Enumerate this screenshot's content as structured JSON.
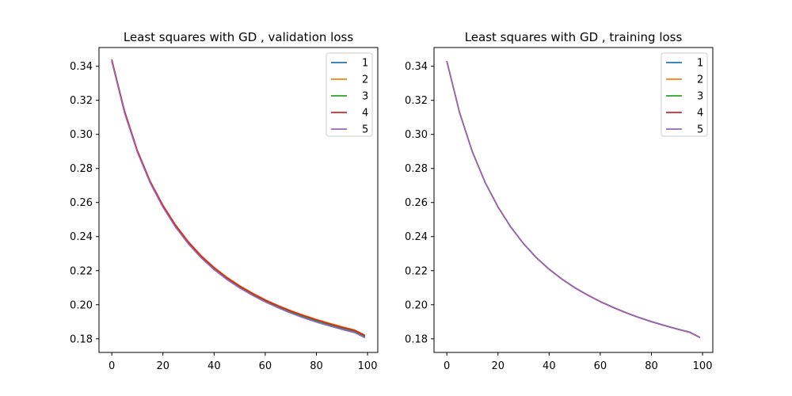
{
  "chart_data": [
    {
      "type": "line",
      "title": "Least squares with GD , validation loss",
      "xlabel": "",
      "ylabel": "",
      "xlim": [
        -5,
        104
      ],
      "ylim": [
        0.172,
        0.351
      ],
      "xticks": [
        0,
        20,
        40,
        60,
        80,
        100
      ],
      "yticks": [
        0.18,
        0.2,
        0.22,
        0.24,
        0.26,
        0.28,
        0.3,
        0.32,
        0.34
      ],
      "x": [
        0,
        5,
        10,
        15,
        20,
        25,
        30,
        35,
        40,
        45,
        50,
        55,
        60,
        65,
        70,
        75,
        80,
        85,
        90,
        95,
        99
      ],
      "legend": "top-right",
      "grid": false,
      "series": [
        {
          "name": "1",
          "color": "#1f77b4",
          "values": [
            0.343,
            0.313,
            0.29,
            0.272,
            0.258,
            0.246,
            0.236,
            0.228,
            0.2215,
            0.2155,
            0.2105,
            0.2062,
            0.2022,
            0.1988,
            0.1957,
            0.1929,
            0.1904,
            0.1882,
            0.1861,
            0.1842,
            0.1811
          ]
        },
        {
          "name": "2",
          "color": "#ff7f0e",
          "values": [
            0.343,
            0.3135,
            0.2905,
            0.2725,
            0.2585,
            0.2468,
            0.237,
            0.2288,
            0.222,
            0.2162,
            0.2112,
            0.2069,
            0.203,
            0.1996,
            0.1966,
            0.1939,
            0.1914,
            0.1892,
            0.1871,
            0.1852,
            0.1822
          ]
        },
        {
          "name": "3",
          "color": "#2ca02c",
          "values": [
            0.343,
            0.313,
            0.29,
            0.272,
            0.258,
            0.2462,
            0.2364,
            0.2282,
            0.2214,
            0.2156,
            0.2106,
            0.2063,
            0.2024,
            0.199,
            0.196,
            0.1932,
            0.1907,
            0.1885,
            0.1864,
            0.1845,
            0.1815
          ]
        },
        {
          "name": "4",
          "color": "#d62728",
          "values": [
            0.344,
            0.3138,
            0.2906,
            0.2725,
            0.2583,
            0.2465,
            0.2367,
            0.2285,
            0.2217,
            0.2159,
            0.2109,
            0.2066,
            0.2027,
            0.1993,
            0.1963,
            0.1936,
            0.1911,
            0.1889,
            0.1868,
            0.1849,
            0.1819
          ]
        },
        {
          "name": "5",
          "color": "#9467bd",
          "values": [
            0.343,
            0.3125,
            0.2895,
            0.2715,
            0.2572,
            0.2454,
            0.2356,
            0.2274,
            0.2206,
            0.2148,
            0.2098,
            0.2055,
            0.2016,
            0.1982,
            0.1951,
            0.1923,
            0.1898,
            0.1876,
            0.1855,
            0.1836,
            0.1806
          ]
        }
      ]
    },
    {
      "type": "line",
      "title": "Least squares with GD , training loss",
      "xlabel": "",
      "ylabel": "",
      "xlim": [
        -5,
        104
      ],
      "ylim": [
        0.172,
        0.351
      ],
      "xticks": [
        0,
        20,
        40,
        60,
        80,
        100
      ],
      "yticks": [
        0.18,
        0.2,
        0.22,
        0.24,
        0.26,
        0.28,
        0.3,
        0.32,
        0.34
      ],
      "x": [
        0,
        5,
        10,
        15,
        20,
        25,
        30,
        35,
        40,
        45,
        50,
        55,
        60,
        65,
        70,
        75,
        80,
        85,
        90,
        95,
        99
      ],
      "legend": "top-right",
      "grid": false,
      "series": [
        {
          "name": "1",
          "color": "#1f77b4",
          "values": [
            0.343,
            0.3128,
            0.2898,
            0.2718,
            0.2575,
            0.2457,
            0.2359,
            0.2277,
            0.2209,
            0.2151,
            0.2101,
            0.2058,
            0.2019,
            0.1985,
            0.1954,
            0.1926,
            0.1901,
            0.1879,
            0.1858,
            0.1839,
            0.1808
          ]
        },
        {
          "name": "2",
          "color": "#ff7f0e",
          "values": [
            0.343,
            0.3127,
            0.2897,
            0.2717,
            0.2574,
            0.2456,
            0.2358,
            0.2276,
            0.2208,
            0.215,
            0.21,
            0.2057,
            0.2018,
            0.1984,
            0.1953,
            0.1925,
            0.19,
            0.1878,
            0.1857,
            0.1838,
            0.1807
          ]
        },
        {
          "name": "3",
          "color": "#2ca02c",
          "values": [
            0.343,
            0.3128,
            0.2898,
            0.2718,
            0.2575,
            0.2457,
            0.2359,
            0.2277,
            0.2209,
            0.2151,
            0.2101,
            0.2058,
            0.2019,
            0.1985,
            0.1954,
            0.1926,
            0.1901,
            0.1879,
            0.1858,
            0.1839,
            0.1808
          ]
        },
        {
          "name": "4",
          "color": "#d62728",
          "values": [
            0.343,
            0.3127,
            0.2897,
            0.2717,
            0.2574,
            0.2456,
            0.2358,
            0.2276,
            0.2208,
            0.215,
            0.21,
            0.2057,
            0.2018,
            0.1984,
            0.1953,
            0.1925,
            0.19,
            0.1878,
            0.1857,
            0.1838,
            0.1807
          ]
        },
        {
          "name": "5",
          "color": "#9467bd",
          "values": [
            0.343,
            0.3128,
            0.2898,
            0.2718,
            0.2575,
            0.2457,
            0.2359,
            0.2277,
            0.2209,
            0.2151,
            0.2101,
            0.2058,
            0.2019,
            0.1985,
            0.1954,
            0.1926,
            0.1901,
            0.1879,
            0.1858,
            0.1839,
            0.1808
          ]
        }
      ]
    }
  ]
}
